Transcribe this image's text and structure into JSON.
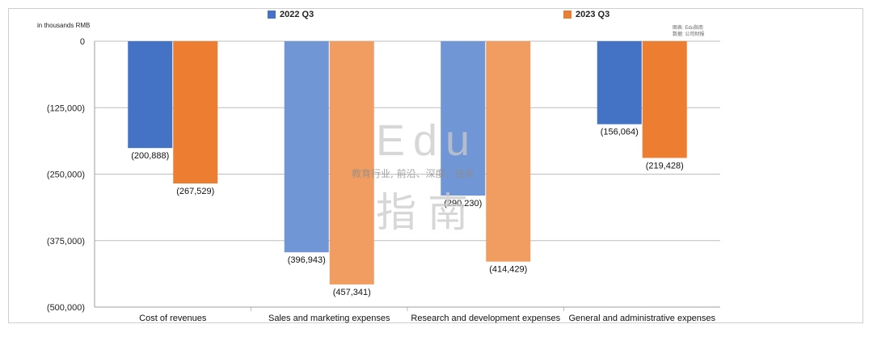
{
  "chart_data": {
    "type": "bar",
    "categories": [
      "Cost of revenues",
      "Sales and marketing expenses",
      "Research and development expenses",
      "General and administrative expenses"
    ],
    "series": [
      {
        "name": "2022 Q3",
        "values": [
          -200888,
          -396943,
          -290230,
          -156064
        ],
        "labels": [
          "(200,888)",
          "(396,943)",
          "(290,230)",
          "(156,064)"
        ],
        "colors": [
          "#4472c4",
          "#7196d6",
          "#7196d6",
          "#4472c4"
        ]
      },
      {
        "name": "2023 Q3",
        "values": [
          -267529,
          -457341,
          -414429,
          -219428
        ],
        "labels": [
          "(267,529)",
          "(457,341)",
          "(414,429)",
          "(219,428)"
        ],
        "colors": [
          "#ed7d31",
          "#f19d62",
          "#f19d62",
          "#ed7d31"
        ]
      }
    ],
    "ylabel": "in thousands RMB",
    "ylim": [
      -500000,
      0
    ],
    "yticks": [
      0,
      -125000,
      -250000,
      -375000,
      -500000
    ],
    "ytick_labels": [
      "0",
      "(125,000)",
      "(250,000)",
      "(375,000)",
      "(500,000)"
    ],
    "grid": true,
    "legend_position": "top"
  },
  "source_note": {
    "line1": "图表: Edu指南",
    "line2": "数据: 公司财报"
  },
  "watermark": {
    "logo": "Edu",
    "slogan": "教育行业, 前沿、深度、独家",
    "brand": "指南"
  },
  "colors": {
    "series_2022": "#4472c4",
    "series_2023": "#ed7d31"
  }
}
